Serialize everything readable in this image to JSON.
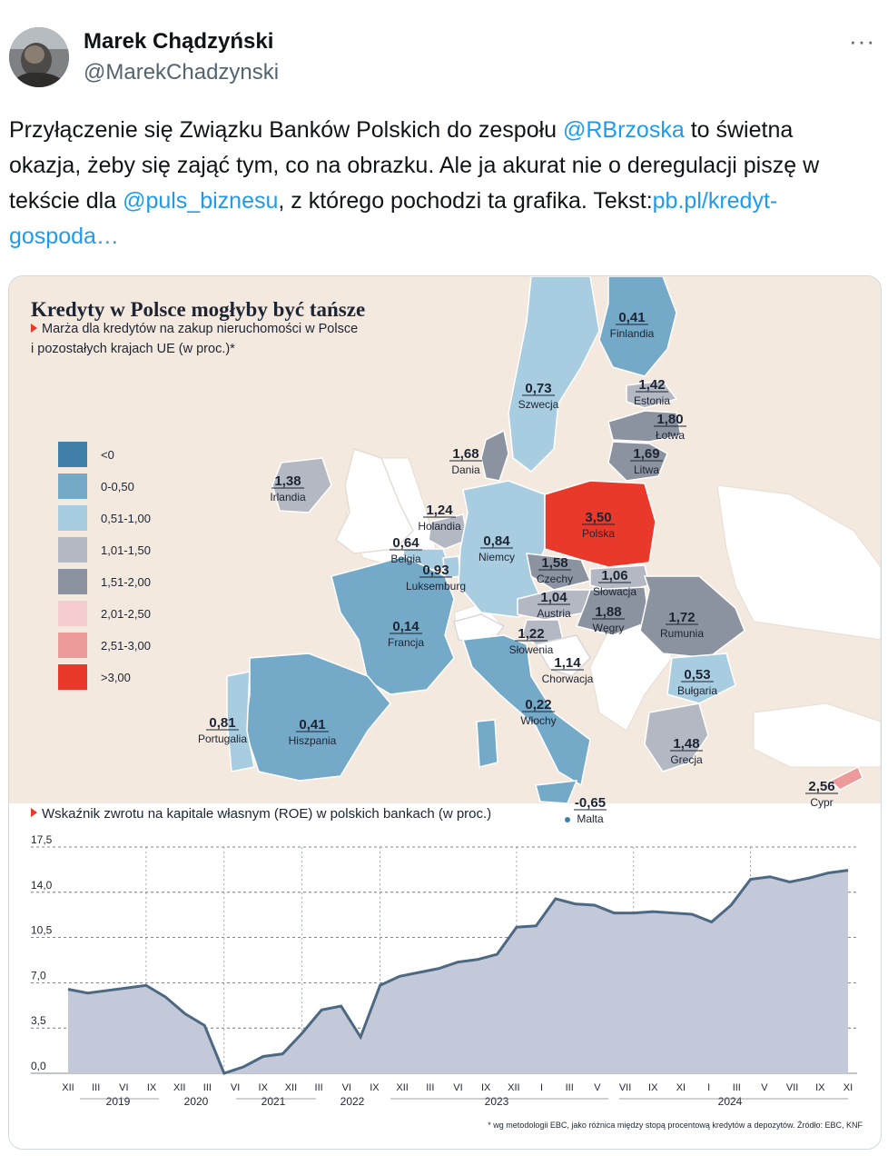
{
  "author": {
    "name": "Marek Chądzyński",
    "handle": "@MarekChadzynski",
    "avatar_icon": "user-avatar"
  },
  "more_icon": "more-options-icon",
  "tweet": {
    "text_1": "Przyłączenie się Związku Banków Polskich do zespołu ",
    "mention_1": "@RBrzoska",
    "text_2": " to świetna okazja, żeby się zająć tym, co na obrazku. Ale ja akurat nie o deregulacji piszę w tekście dla ",
    "mention_2": "@puls_biznesu",
    "text_3": ", z którego pochodzi ta grafika. Tekst:",
    "link": "pb.pl/kredyt-gospoda…"
  },
  "infographic": {
    "title": "Kredyty w Polsce mogłyby być tańsze",
    "subtitle_1": "Marża dla kredytów na zakup nieruchomości w Polsce",
    "subtitle_2": "i pozostałych krajach UE (w proc.)*",
    "legend": [
      {
        "label": "<0",
        "color": "#3f7fa8"
      },
      {
        "label": "0-0,50",
        "color": "#74a9c7"
      },
      {
        "label": "0,51-1,00",
        "color": "#a9cde0"
      },
      {
        "label": "1,01-1,50",
        "color": "#b4b8c2"
      },
      {
        "label": "1,51-2,00",
        "color": "#8c93a0"
      },
      {
        "label": "2,01-2,50",
        "color": "#f5cdd0"
      },
      {
        "label": "2,51-3,00",
        "color": "#ec9a9a"
      },
      {
        "label": ">3,00",
        "color": "#e8392a"
      }
    ],
    "countries": [
      {
        "name": "Finlandia",
        "value": "0,41"
      },
      {
        "name": "Szwecja",
        "value": "0,73"
      },
      {
        "name": "Estonia",
        "value": "1,42"
      },
      {
        "name": "Łotwa",
        "value": "1,80"
      },
      {
        "name": "Litwa",
        "value": "1,69"
      },
      {
        "name": "Dania",
        "value": "1,68"
      },
      {
        "name": "Irlandia",
        "value": "1,38"
      },
      {
        "name": "Holandia",
        "value": "1,24"
      },
      {
        "name": "Belgia",
        "value": "0,64"
      },
      {
        "name": "Luksemburg",
        "value": "0,93"
      },
      {
        "name": "Niemcy",
        "value": "0,84"
      },
      {
        "name": "Polska",
        "value": "3,50"
      },
      {
        "name": "Czechy",
        "value": "1,58"
      },
      {
        "name": "Słowacja",
        "value": "1,06"
      },
      {
        "name": "Austria",
        "value": "1,04"
      },
      {
        "name": "Węgry",
        "value": "1,88"
      },
      {
        "name": "Rumunia",
        "value": "1,72"
      },
      {
        "name": "Francja",
        "value": "0,14"
      },
      {
        "name": "Słowenia",
        "value": "1,22"
      },
      {
        "name": "Chorwacja",
        "value": "1,14"
      },
      {
        "name": "Bułgaria",
        "value": "0,53"
      },
      {
        "name": "Włochy",
        "value": "0,22"
      },
      {
        "name": "Portugalia",
        "value": "0,81"
      },
      {
        "name": "Hiszpania",
        "value": "0,41"
      },
      {
        "name": "Grecja",
        "value": "1,48"
      },
      {
        "name": "Cypr",
        "value": "2,56"
      },
      {
        "name": "Malta",
        "value": "-0,65"
      }
    ],
    "roe_title": "Wskaźnik zwrotu na kapitale własnym (ROE) w polskich bankach (w proc.)",
    "footnote": "* wg metodologii EBC, jako różnica między stopą procentową kredytów a depozytów. Źródło: EBC, KNF"
  },
  "chart_data": {
    "type": "area",
    "title": "Wskaźnik zwrotu na kapitale własnym (ROE) w polskich bankach (w proc.)",
    "ylim": [
      0,
      17.5
    ],
    "yticks": [
      "0,0",
      "3,5",
      "7,0",
      "10,5",
      "14,0",
      "17,5"
    ],
    "ytick_values": [
      0,
      3.5,
      7,
      10.5,
      14,
      17.5
    ],
    "month_ticks": [
      "XII",
      "III",
      "VI",
      "IX",
      "XII",
      "III",
      "VI",
      "IX",
      "XII",
      "III",
      "VI",
      "IX",
      "XII",
      "III",
      "VI",
      "IX",
      "XII",
      "I",
      "III",
      "V",
      "VII",
      "IX",
      "XI",
      "I",
      "III",
      "V",
      "VII",
      "IX",
      "XI"
    ],
    "years": [
      "2019",
      "2020",
      "2021",
      "2022",
      "2023",
      "2024"
    ],
    "series": [
      {
        "name": "ROE",
        "values": [
          6.5,
          6.2,
          6.4,
          6.6,
          6.8,
          5.9,
          4.6,
          3.7,
          0.0,
          0.5,
          1.3,
          1.5,
          3.1,
          4.9,
          5.2,
          2.8,
          6.8,
          7.5,
          7.8,
          8.1,
          8.6,
          8.8,
          9.2,
          11.3,
          11.4,
          13.5,
          13.1,
          13.0,
          12.4,
          12.4,
          12.5,
          12.4,
          12.3,
          11.7,
          13.0,
          15.0,
          15.2,
          14.8,
          15.1,
          15.5,
          15.7
        ]
      }
    ]
  }
}
